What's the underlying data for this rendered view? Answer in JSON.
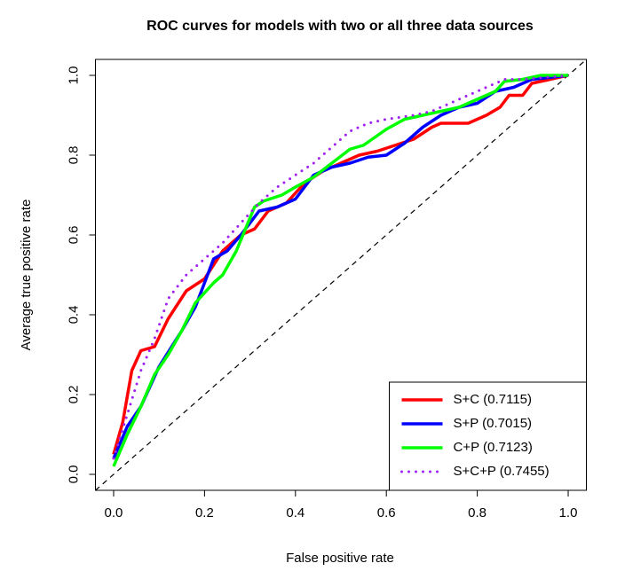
{
  "chart_data": {
    "type": "line",
    "title": "ROC curves for models with two or all three data sources",
    "x_label": "False positive rate",
    "y_label": "Average true positive rate",
    "xlim": [
      -0.04,
      1.04
    ],
    "ylim": [
      -0.04,
      1.04
    ],
    "xticks": [
      {
        "value": 0,
        "label": "0.0"
      },
      {
        "value": 0.2,
        "label": "0.2"
      },
      {
        "value": 0.4,
        "label": "0.4"
      },
      {
        "value": 0.6,
        "label": "0.6"
      },
      {
        "value": 0.8,
        "label": "0.8"
      },
      {
        "value": 1,
        "label": "1.0"
      }
    ],
    "yticks": [
      {
        "value": 0,
        "label": "0.0"
      },
      {
        "value": 0.2,
        "label": "0.2"
      },
      {
        "value": 0.4,
        "label": "0.4"
      },
      {
        "value": 0.6,
        "label": "0.6"
      },
      {
        "value": 0.8,
        "label": "0.8"
      },
      {
        "value": 1,
        "label": "1.0"
      }
    ],
    "legend_position": "bottomright",
    "series": [
      {
        "name": "S+C (0.7115)",
        "color": "#ff0000",
        "style": "solid",
        "x": [
          0,
          0.02,
          0.04,
          0.06,
          0.09,
          0.12,
          0.16,
          0.2,
          0.24,
          0.28,
          0.31,
          0.34,
          0.38,
          0.42,
          0.46,
          0.5,
          0.54,
          0.58,
          0.62,
          0.66,
          0.7,
          0.72,
          0.78,
          0.82,
          0.85,
          0.87,
          0.9,
          0.92,
          0.96,
          1
        ],
        "values": [
          0.05,
          0.13,
          0.26,
          0.31,
          0.32,
          0.39,
          0.46,
          0.49,
          0.56,
          0.6,
          0.615,
          0.66,
          0.68,
          0.73,
          0.76,
          0.78,
          0.8,
          0.81,
          0.825,
          0.84,
          0.87,
          0.88,
          0.88,
          0.9,
          0.92,
          0.95,
          0.95,
          0.98,
          0.99,
          1
        ]
      },
      {
        "name": "S+P (0.7015)",
        "color": "#0000ff",
        "style": "solid",
        "x": [
          0,
          0.03,
          0.06,
          0.1,
          0.15,
          0.18,
          0.22,
          0.25,
          0.28,
          0.32,
          0.36,
          0.4,
          0.44,
          0.48,
          0.52,
          0.56,
          0.6,
          0.64,
          0.68,
          0.72,
          0.76,
          0.8,
          0.84,
          0.88,
          0.92,
          1
        ],
        "values": [
          0.04,
          0.12,
          0.17,
          0.27,
          0.36,
          0.42,
          0.54,
          0.56,
          0.6,
          0.66,
          0.67,
          0.69,
          0.75,
          0.77,
          0.78,
          0.795,
          0.8,
          0.83,
          0.87,
          0.9,
          0.92,
          0.93,
          0.96,
          0.97,
          0.99,
          1
        ]
      },
      {
        "name": "C+P (0.7123)",
        "color": "#00ff00",
        "style": "solid",
        "x": [
          0,
          0.03,
          0.06,
          0.09,
          0.12,
          0.15,
          0.18,
          0.22,
          0.24,
          0.27,
          0.31,
          0.33,
          0.37,
          0.4,
          0.44,
          0.48,
          0.52,
          0.55,
          0.6,
          0.64,
          0.68,
          0.72,
          0.76,
          0.8,
          0.84,
          0.86,
          0.9,
          0.94,
          1
        ],
        "values": [
          0.02,
          0.1,
          0.17,
          0.25,
          0.3,
          0.36,
          0.43,
          0.48,
          0.5,
          0.56,
          0.67,
          0.685,
          0.7,
          0.72,
          0.745,
          0.78,
          0.815,
          0.825,
          0.865,
          0.89,
          0.9,
          0.91,
          0.92,
          0.94,
          0.96,
          0.985,
          0.99,
          1,
          1
        ]
      },
      {
        "name": "S+C+P (0.7455)",
        "color": "#a020f0",
        "style": "dotted",
        "x": [
          0,
          0.03,
          0.06,
          0.09,
          0.12,
          0.16,
          0.2,
          0.24,
          0.28,
          0.32,
          0.36,
          0.4,
          0.44,
          0.48,
          0.52,
          0.56,
          0.6,
          0.66,
          0.7,
          0.74,
          0.78,
          0.82,
          0.86,
          0.9,
          1
        ],
        "values": [
          0.04,
          0.15,
          0.26,
          0.34,
          0.44,
          0.5,
          0.54,
          0.58,
          0.63,
          0.68,
          0.72,
          0.75,
          0.78,
          0.82,
          0.86,
          0.88,
          0.89,
          0.9,
          0.91,
          0.93,
          0.95,
          0.97,
          0.99,
          0.99,
          1
        ]
      }
    ]
  }
}
